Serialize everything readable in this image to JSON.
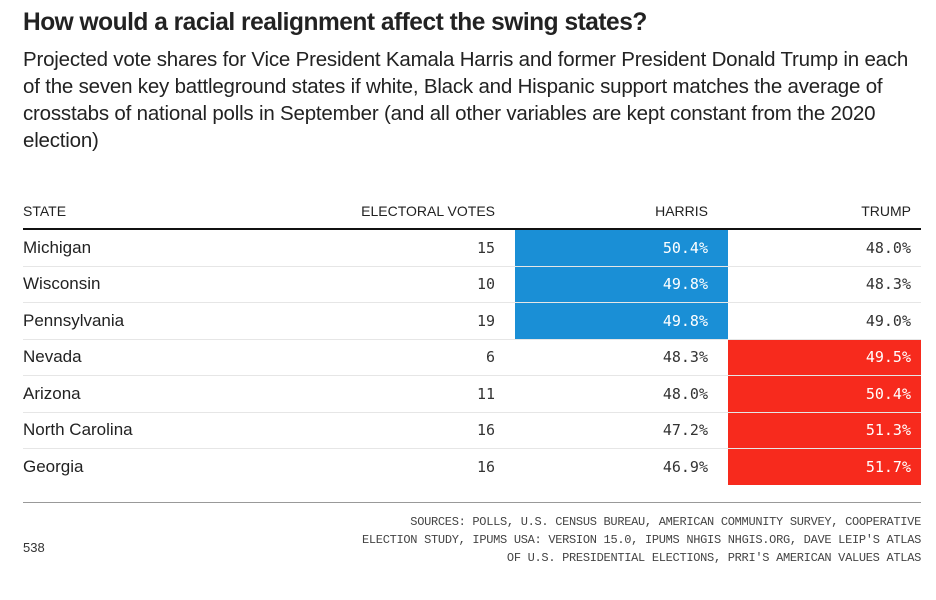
{
  "title": "How would a racial realignment affect the swing states?",
  "subtitle": "Projected vote shares for Vice President Kamala Harris and former President Donald Trump in each of the seven key battleground states if white, Black and Hispanic support matches the average of crosstabs of national polls in September (and all other variables are kept constant from the 2020 election)",
  "colors": {
    "harris": "#1a8fd6",
    "trump": "#f72a1d"
  },
  "chart_data": {
    "type": "table",
    "title": "How would a racial realignment affect the swing states?",
    "columns": [
      "STATE",
      "ELECTORAL VOTES",
      "HARRIS",
      "TRUMP"
    ],
    "rows": [
      {
        "state": "Michigan",
        "ev": "15",
        "harris": "50.4%",
        "trump": "48.0%",
        "winner": "harris"
      },
      {
        "state": "Wisconsin",
        "ev": "10",
        "harris": "49.8%",
        "trump": "48.3%",
        "winner": "harris"
      },
      {
        "state": "Pennsylvania",
        "ev": "19",
        "harris": "49.8%",
        "trump": "49.0%",
        "winner": "harris"
      },
      {
        "state": "Nevada",
        "ev": "6",
        "harris": "48.3%",
        "trump": "49.5%",
        "winner": "trump"
      },
      {
        "state": "Arizona",
        "ev": "11",
        "harris": "48.0%",
        "trump": "50.4%",
        "winner": "trump"
      },
      {
        "state": "North Carolina",
        "ev": "16",
        "harris": "47.2%",
        "trump": "51.3%",
        "winner": "trump"
      },
      {
        "state": "Georgia",
        "ev": "16",
        "harris": "46.9%",
        "trump": "51.7%",
        "winner": "trump"
      }
    ]
  },
  "footer": {
    "brand": "538",
    "sources": "SOURCES: POLLS, U.S. CENSUS BUREAU, AMERICAN COMMUNITY SURVEY, COOPERATIVE ELECTION STUDY, IPUMS USA: VERSION 15.0, IPUMS NHGIS NHGIS.ORG, DAVE LEIP'S ATLAS OF U.S. PRESIDENTIAL ELECTIONS, PRRI'S AMERICAN VALUES ATLAS"
  }
}
